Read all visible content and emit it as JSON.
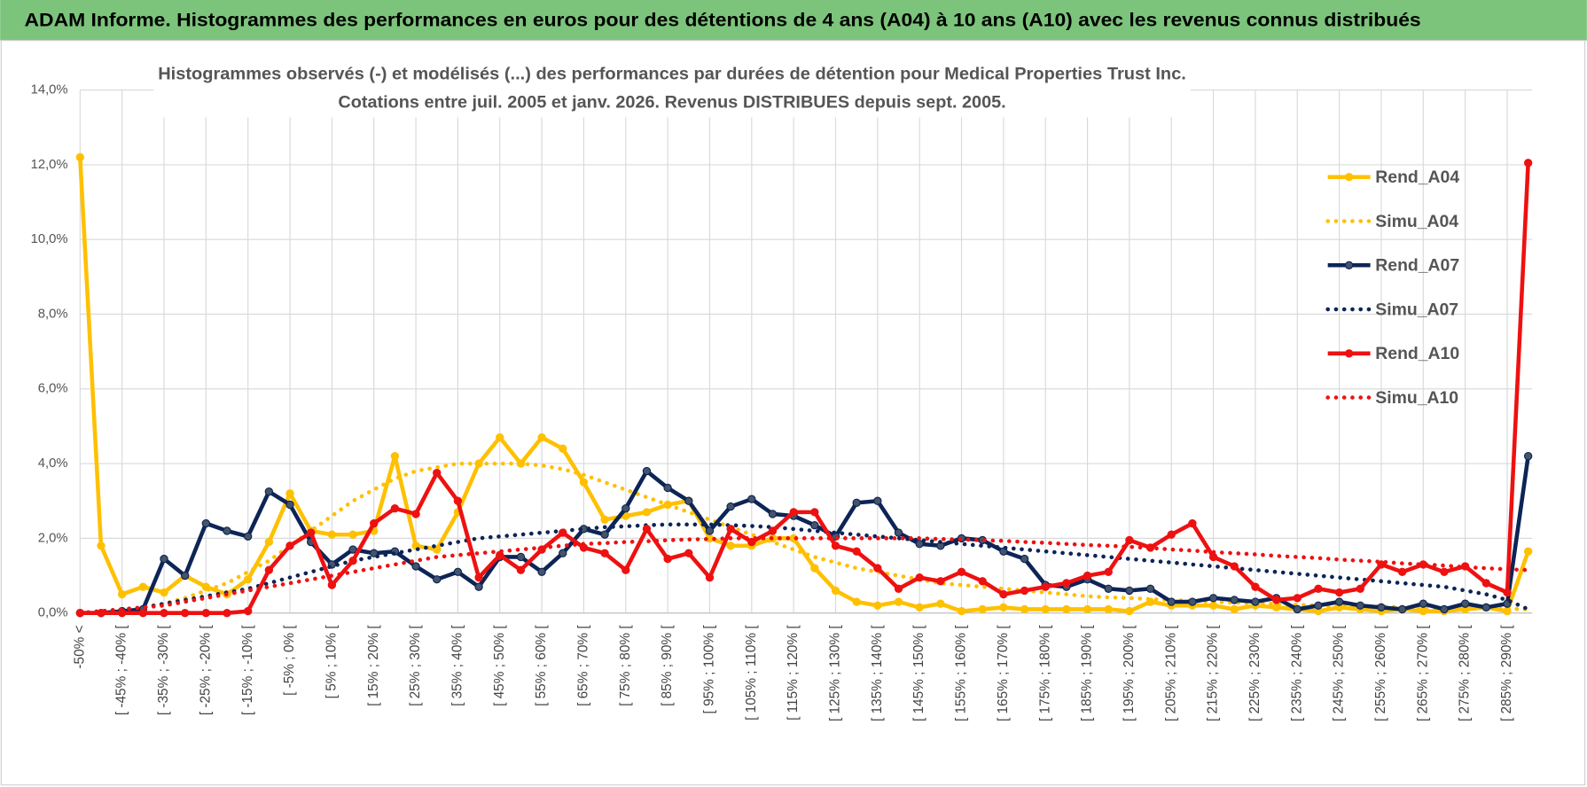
{
  "chart_data": {
    "type": "line",
    "banner": "ADAM Informe. Histogrammes des performances en euros pour des détentions de 4 ans (A04) à 10 ans (A10) avec les revenus connus distribués",
    "title": "Histogrammes observés (-) et modélisés (...) des performances par durées de détention pour Medical Properties Trust Inc.",
    "subtitle": "Cotations entre juil. 2005 et janv. 2026. Revenus DISTRIBUES depuis sept. 2005.",
    "categories": [
      "-50% <",
      null,
      "[ -45% ; -40% [",
      null,
      "[ -35% ; -30% [",
      null,
      "[ -25% ; -20% [",
      null,
      "[ -15% ; -10% [",
      null,
      "[ -5% ; 0% [",
      null,
      "[ 5% ; 10% [",
      null,
      "[ 15% ; 20% [",
      null,
      "[ 25% ; 30% [",
      null,
      "[ 35% ; 40% [",
      null,
      "[ 45% ; 50% [",
      null,
      "[ 55% ; 60% [",
      null,
      "[ 65% ; 70% [",
      null,
      "[ 75% ; 80% [",
      null,
      "[ 85% ; 90% [",
      null,
      "[ 95% ; 100% [",
      null,
      "[ 105% ; 110% [",
      null,
      "[ 115% ; 120% [",
      null,
      "[ 125% ; 130% [",
      null,
      "[ 135% ; 140% [",
      null,
      "[ 145% ; 150% [",
      null,
      "[ 155% ; 160% [",
      null,
      "[ 165% ; 170% [",
      null,
      "[ 175% ; 180% [",
      null,
      "[ 185% ; 190% [",
      null,
      "[ 195% ; 200% [",
      null,
      "[ 205% ; 210% [",
      null,
      "[ 215% ; 220% [",
      null,
      "[ 225% ; 230% [",
      null,
      "[ 235% ; 240% [",
      null,
      "[ 245% ; 250% [",
      null,
      "[ 255% ; 260% [",
      null,
      "[ 265% ; 270% [",
      null,
      "[ 275% ; 280% [",
      null,
      "[ 285% ; 290% [",
      null
    ],
    "series": [
      {
        "name": "Rend_A04",
        "color": "#ffc000",
        "line_style": "solid",
        "markers": true,
        "values": [
          12.2,
          1.8,
          0.5,
          0.7,
          0.55,
          1.0,
          0.7,
          0.5,
          0.9,
          1.9,
          3.2,
          2.2,
          2.1,
          2.1,
          2.2,
          4.2,
          1.8,
          1.7,
          2.7,
          4.0,
          4.7,
          4.0,
          4.7,
          4.4,
          3.5,
          2.5,
          2.6,
          2.7,
          2.9,
          3.0,
          2.0,
          1.8,
          1.8,
          2.0,
          2.0,
          1.2,
          0.6,
          0.3,
          0.2,
          0.3,
          0.15,
          0.25,
          0.05,
          0.1,
          0.15,
          0.1,
          0.1,
          0.1,
          0.1,
          0.1,
          0.05,
          0.3,
          0.2,
          0.2,
          0.2,
          0.1,
          0.2,
          0.15,
          0.1,
          0.05,
          0.15,
          0.1,
          0.05,
          0.1,
          0.05,
          0.05,
          0.1,
          0.15,
          0.05,
          1.65
        ]
      },
      {
        "name": "Simu_A04",
        "color": "#ffc000",
        "line_style": "dotted",
        "markers": false,
        "values": [
          0,
          0.05,
          0.1,
          0.15,
          0.25,
          0.4,
          0.6,
          0.8,
          1.1,
          1.4,
          1.8,
          2.2,
          2.6,
          3.0,
          3.3,
          3.6,
          3.8,
          3.9,
          4.0,
          4.0,
          4.0,
          4.0,
          3.95,
          3.85,
          3.7,
          3.5,
          3.3,
          3.1,
          2.9,
          2.7,
          2.5,
          2.3,
          2.1,
          1.9,
          1.7,
          1.5,
          1.35,
          1.2,
          1.1,
          1.0,
          0.9,
          0.8,
          0.75,
          0.7,
          0.65,
          0.6,
          0.55,
          0.5,
          0.45,
          0.42,
          0.4,
          0.37,
          0.35,
          0.32,
          0.3,
          0.28,
          0.26,
          0.24,
          0.22,
          0.2,
          0.19,
          0.18,
          0.17,
          0.16,
          0.15,
          0.14,
          0.13,
          0.12,
          0.11,
          0.1
        ]
      },
      {
        "name": "Rend_A07",
        "color": "#0d2456",
        "line_style": "solid",
        "markers": true,
        "values": [
          0,
          0,
          0.05,
          0.1,
          1.45,
          1.0,
          2.4,
          2.2,
          2.05,
          3.25,
          2.9,
          1.9,
          1.3,
          1.7,
          1.6,
          1.65,
          1.25,
          0.9,
          1.1,
          0.7,
          1.5,
          1.5,
          1.1,
          1.6,
          2.25,
          2.1,
          2.8,
          3.8,
          3.35,
          3.0,
          2.2,
          2.85,
          3.05,
          2.65,
          2.6,
          2.35,
          2.05,
          2.95,
          3.0,
          2.15,
          1.85,
          1.8,
          2.0,
          1.95,
          1.65,
          1.45,
          0.75,
          0.7,
          0.9,
          0.65,
          0.6,
          0.65,
          0.3,
          0.3,
          0.4,
          0.35,
          0.3,
          0.4,
          0.1,
          0.2,
          0.3,
          0.2,
          0.15,
          0.1,
          0.25,
          0.1,
          0.25,
          0.15,
          0.25,
          4.2
        ]
      },
      {
        "name": "Simu_A07",
        "color": "#0d2456",
        "line_style": "dotted",
        "markers": false,
        "values": [
          0,
          0.05,
          0.1,
          0.15,
          0.25,
          0.35,
          0.45,
          0.55,
          0.65,
          0.8,
          0.95,
          1.1,
          1.25,
          1.4,
          1.5,
          1.6,
          1.7,
          1.8,
          1.9,
          2.0,
          2.05,
          2.1,
          2.15,
          2.2,
          2.25,
          2.3,
          2.32,
          2.35,
          2.37,
          2.37,
          2.37,
          2.35,
          2.33,
          2.3,
          2.25,
          2.2,
          2.15,
          2.1,
          2.05,
          2.0,
          1.95,
          1.9,
          1.85,
          1.8,
          1.75,
          1.7,
          1.65,
          1.6,
          1.55,
          1.5,
          1.45,
          1.4,
          1.35,
          1.3,
          1.25,
          1.2,
          1.15,
          1.1,
          1.05,
          1.0,
          0.95,
          0.9,
          0.85,
          0.8,
          0.75,
          0.7,
          0.6,
          0.5,
          0.35,
          0.1
        ]
      },
      {
        "name": "Rend_A10",
        "color": "#ee1111",
        "line_style": "solid",
        "markers": true,
        "values": [
          0,
          0,
          0,
          0,
          0,
          0,
          0,
          0,
          0.05,
          1.15,
          1.8,
          2.15,
          0.75,
          1.4,
          2.4,
          2.8,
          2.65,
          3.75,
          3.0,
          0.95,
          1.55,
          1.15,
          1.7,
          2.15,
          1.75,
          1.6,
          1.15,
          2.25,
          1.45,
          1.6,
          0.95,
          2.25,
          1.9,
          2.2,
          2.7,
          2.7,
          1.8,
          1.65,
          1.2,
          0.65,
          0.95,
          0.85,
          1.1,
          0.85,
          0.5,
          0.6,
          0.7,
          0.8,
          1.0,
          1.1,
          1.95,
          1.75,
          2.1,
          2.4,
          1.5,
          1.25,
          0.7,
          0.35,
          0.4,
          0.65,
          0.55,
          0.65,
          1.3,
          1.1,
          1.3,
          1.1,
          1.25,
          0.8,
          0.55,
          12.05
        ]
      },
      {
        "name": "Simu_A10",
        "color": "#ee1111",
        "line_style": "dotted",
        "markers": false,
        "values": [
          0,
          0.05,
          0.1,
          0.15,
          0.2,
          0.3,
          0.4,
          0.5,
          0.6,
          0.7,
          0.8,
          0.9,
          1.0,
          1.1,
          1.2,
          1.3,
          1.4,
          1.5,
          1.55,
          1.6,
          1.65,
          1.7,
          1.75,
          1.8,
          1.85,
          1.87,
          1.9,
          1.92,
          1.95,
          1.97,
          1.98,
          2.0,
          2.0,
          2.0,
          2.0,
          2.0,
          2.0,
          2.0,
          2.0,
          2.0,
          2.0,
          1.98,
          1.97,
          1.95,
          1.93,
          1.9,
          1.88,
          1.85,
          1.82,
          1.8,
          1.77,
          1.74,
          1.7,
          1.67,
          1.63,
          1.6,
          1.57,
          1.53,
          1.5,
          1.47,
          1.43,
          1.4,
          1.37,
          1.33,
          1.3,
          1.27,
          1.23,
          1.2,
          1.17,
          1.15
        ]
      }
    ],
    "ylim": [
      0,
      14
    ],
    "yticks": [
      {
        "value": 0,
        "label": "0,0%"
      },
      {
        "value": 2,
        "label": "2,0%"
      },
      {
        "value": 4,
        "label": "4,0%"
      },
      {
        "value": 6,
        "label": "6,0%"
      },
      {
        "value": 8,
        "label": "8,0%"
      },
      {
        "value": 10,
        "label": "10,0%"
      },
      {
        "value": 12,
        "label": "12,0%"
      },
      {
        "value": 14,
        "label": "14,0%"
      }
    ],
    "grid": true,
    "legend": "right"
  }
}
